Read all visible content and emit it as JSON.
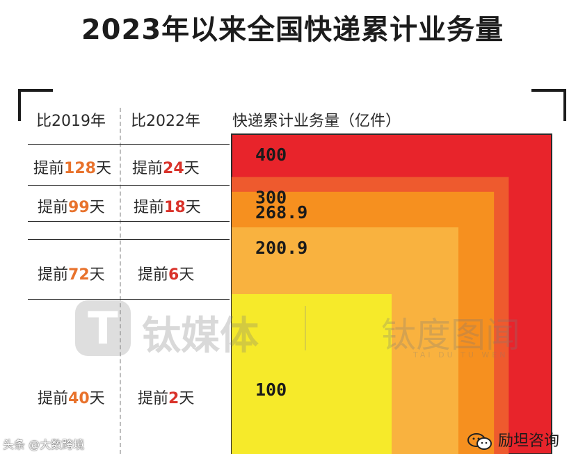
{
  "title": "2023年以来全国快递累计业务量",
  "headers": {
    "vs2019": "比2019年",
    "vs2022": "比2022年",
    "volume": "快递累计业务量（亿件）"
  },
  "rows": [
    {
      "vs2019": {
        "prefix": "提前",
        "num": "128",
        "suffix": "天"
      },
      "vs2022": {
        "prefix": "提前",
        "num": "24",
        "suffix": "天"
      }
    },
    {
      "vs2019": {
        "prefix": "提前",
        "num": "99",
        "suffix": "天"
      },
      "vs2022": {
        "prefix": "提前",
        "num": "18",
        "suffix": "天"
      }
    },
    {
      "vs2019": {
        "prefix": "提前",
        "num": "72",
        "suffix": "天"
      },
      "vs2022": {
        "prefix": "提前",
        "num": "6",
        "suffix": "天"
      }
    },
    {
      "vs2019": {
        "prefix": "提前",
        "num": "40",
        "suffix": "天"
      },
      "vs2022": {
        "prefix": "提前",
        "num": "2",
        "suffix": "天"
      }
    }
  ],
  "chart_data": {
    "type": "area",
    "description_unit": "亿件",
    "values": [
      400,
      300,
      268.9,
      200.9,
      100
    ],
    "labels": [
      "400",
      "300",
      "268.9",
      "200.9",
      "100"
    ],
    "colors": [
      "#e8242b",
      "#ee5a2e",
      "#f6901f",
      "#f9b23f",
      "#f6ea2a"
    ]
  },
  "watermark": {
    "brand": "钛媒体",
    "brand2": "钛度图闻",
    "sub": "TAI DU TU WEN"
  },
  "footer": {
    "left": "头条 @大数跨境",
    "right": "励坦咨询"
  },
  "colors": {
    "orange_num": "#e8722c",
    "red_num": "#d9332b"
  }
}
